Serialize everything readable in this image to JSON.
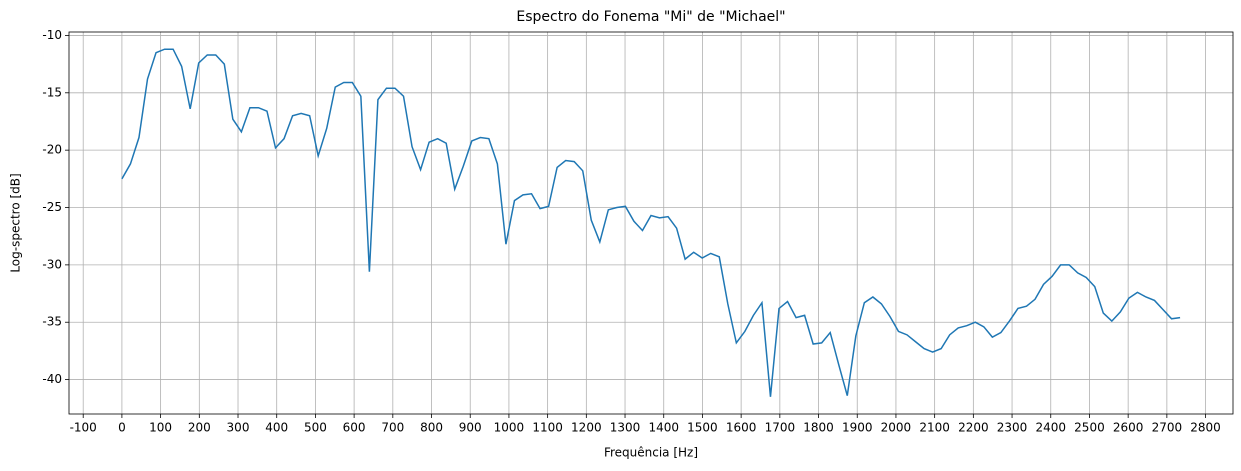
{
  "chart_data": {
    "type": "line",
    "title": "Espectro do Fonema \"Mi\" de \"Michael\"",
    "x_label": "Frequência [Hz]",
    "y_label": "Log-spectro [dB]",
    "x": [
      0,
      22.05,
      44.1,
      66.15,
      88.2,
      110.25,
      132.3,
      154.35,
      176.4,
      198.45,
      220.5,
      242.55,
      264.6,
      286.65,
      308.7,
      330.75,
      352.8,
      374.85,
      396.9,
      418.95,
      441,
      463.05,
      485.1,
      507.15,
      529.2,
      551.25,
      573.3,
      595.35,
      617.4,
      639.45,
      661.5,
      683.55,
      705.6,
      727.65,
      749.7,
      771.75,
      793.8,
      815.85,
      837.9,
      859.95,
      882,
      904.05,
      926.1,
      948.15,
      970.2,
      992.25,
      1014.3,
      1036.35,
      1058.4,
      1080.45,
      1102.5,
      1124.55,
      1146.6,
      1168.65,
      1190.7,
      1212.75,
      1234.8,
      1256.85,
      1278.9,
      1300.95,
      1323,
      1345.05,
      1367.1,
      1389.15,
      1411.2,
      1433.25,
      1455.3,
      1477.35,
      1499.4,
      1521.45,
      1543.5,
      1565.55,
      1587.6,
      1609.65,
      1631.7,
      1653.75,
      1675.8,
      1697.85,
      1719.9,
      1741.95,
      1764,
      1786.05,
      1808.1,
      1830.15,
      1852.2,
      1874.25,
      1896.3,
      1918.35,
      1940.4,
      1962.45,
      1984.5,
      2006.55,
      2028.6,
      2050.65,
      2072.7,
      2094.75,
      2116.8,
      2138.85,
      2160.9,
      2182.95,
      2205,
      2227.05,
      2249.1,
      2271.15,
      2293.2,
      2315.25,
      2337.3,
      2359.35,
      2381.4,
      2403.45,
      2425.5,
      2447.55,
      2469.6,
      2491.65,
      2513.7,
      2535.75,
      2557.8,
      2579.85,
      2601.9,
      2623.95,
      2646,
      2668.05,
      2690.1,
      2712.15,
      2734.2
    ],
    "series": [
      {
        "color": "#1f77b4",
        "values": [
          -22.5,
          -21.2,
          -18.9,
          -13.8,
          -11.5,
          -11.2,
          -11.2,
          -12.7,
          -16.4,
          -12.4,
          -11.7,
          -11.7,
          -12.5,
          -17.3,
          -18.4,
          -16.3,
          -16.3,
          -16.6,
          -19.8,
          -19.0,
          -17.0,
          -16.8,
          -17.0,
          -20.5,
          -18.1,
          -14.5,
          -14.1,
          -14.1,
          -15.3,
          -30.6,
          -15.6,
          -14.6,
          -14.6,
          -15.3,
          -19.7,
          -21.7,
          -19.3,
          -19.0,
          -19.4,
          -23.4,
          -21.4,
          -19.2,
          -18.9,
          -19.0,
          -21.2,
          -28.2,
          -24.4,
          -23.9,
          -23.8,
          -25.1,
          -24.9,
          -21.5,
          -20.9,
          -21.0,
          -21.8,
          -26.1,
          -28.0,
          -25.2,
          -25.0,
          -24.9,
          -26.2,
          -27.0,
          -25.7,
          -25.9,
          -25.8,
          -26.8,
          -29.5,
          -28.9,
          -29.4,
          -29.0,
          -29.3,
          -33.4,
          -36.8,
          -35.8,
          -34.4,
          -33.3,
          -41.5,
          -33.8,
          -33.2,
          -34.6,
          -34.4,
          -36.9,
          -36.8,
          -35.9,
          -38.7,
          -41.4,
          -36.2,
          -33.3,
          -32.8,
          -33.4,
          -34.5,
          -35.8,
          -36.1,
          -36.7,
          -37.3,
          -37.6,
          -37.3,
          -36.1,
          -35.5,
          -35.3,
          -35.0,
          -35.4,
          -36.3,
          -35.9,
          -34.9,
          -33.8,
          -33.6,
          -33.0,
          -31.7,
          -31.0,
          -30.0,
          -30.0,
          -30.7,
          -31.1,
          -31.9,
          -34.2,
          -34.9,
          -34.1,
          -32.9,
          -32.4,
          -32.8,
          -33.1,
          -33.9,
          -34.7,
          -34.6
        ]
      }
    ],
    "xlim": [
      -136.7,
      2870.9
    ],
    "ylim": [
      -43.0,
      -9.7
    ],
    "xticks": [
      -100,
      0,
      100,
      200,
      300,
      400,
      500,
      600,
      700,
      800,
      900,
      1000,
      1100,
      1200,
      1300,
      1400,
      1500,
      1600,
      1700,
      1800,
      1900,
      2000,
      2100,
      2200,
      2300,
      2400,
      2500,
      2600,
      2700,
      2800
    ],
    "yticks": [
      -40,
      -35,
      -30,
      -25,
      -20,
      -15,
      -10
    ],
    "grid": true
  }
}
